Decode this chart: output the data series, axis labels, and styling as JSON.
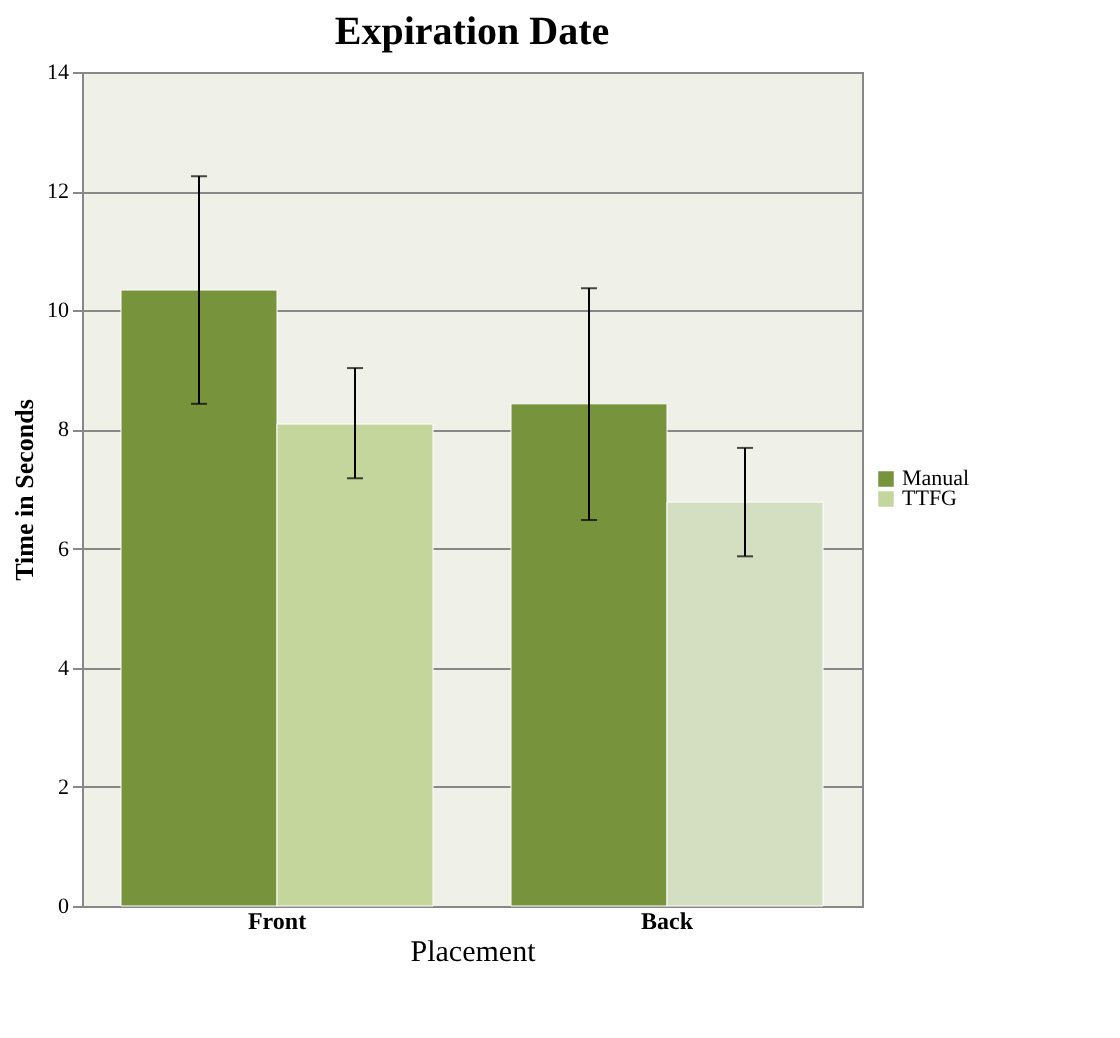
{
  "chart_data": {
    "type": "bar",
    "title": "Expiration Date",
    "xlabel": "Placement",
    "ylabel": "Time in Seconds",
    "categories": [
      "Front",
      "Back"
    ],
    "series": [
      {
        "name": "Manual",
        "color": "#77933c",
        "values": [
          10.34,
          8.43
        ],
        "errors": [
          [
            8.43,
            12.25
          ],
          [
            6.48,
            10.37
          ]
        ]
      },
      {
        "name": "TTFG",
        "color": "#c5d69c",
        "colors": [
          "#c5d69c",
          "#d3dfc0"
        ],
        "values": [
          8.09,
          6.78
        ],
        "errors": [
          [
            7.18,
            9.03
          ],
          [
            5.87,
            7.69
          ]
        ]
      }
    ],
    "ylim": [
      0,
      14
    ],
    "yticks": [
      0,
      2,
      4,
      6,
      8,
      10,
      12,
      14
    ],
    "grid": "y",
    "legend": "right"
  }
}
